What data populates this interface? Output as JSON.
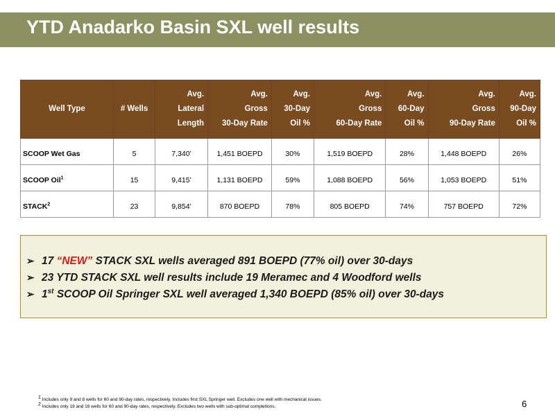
{
  "slide": {
    "title": "YTD Anadarko Basin SXL well results",
    "page_number": "6"
  },
  "table": {
    "headers": [
      {
        "lines": [
          "Well Type"
        ]
      },
      {
        "lines": [
          "# Wells"
        ]
      },
      {
        "lines": [
          "Avg.",
          "Lateral",
          "Length"
        ]
      },
      {
        "lines": [
          "Avg.",
          "Gross",
          "30-Day Rate"
        ]
      },
      {
        "lines": [
          "Avg.",
          "30-Day",
          "Oil %"
        ]
      },
      {
        "lines": [
          "Avg.",
          "Gross",
          "60-Day Rate"
        ]
      },
      {
        "lines": [
          "Avg.",
          "60-Day",
          "Oil %"
        ]
      },
      {
        "lines": [
          "Avg.",
          "Gross",
          "90-Day Rate"
        ]
      },
      {
        "lines": [
          "Avg.",
          "90-Day",
          "Oil %"
        ]
      }
    ],
    "rows": [
      {
        "well_type": "SCOOP Wet Gas",
        "sup": "",
        "wells": "5",
        "lateral": "7,340’",
        "rate30": "1,451 BOEPD",
        "oil30": "30%",
        "rate60": "1,519 BOEPD",
        "oil60": "28%",
        "rate90": "1,448 BOEPD",
        "oil90": "26%"
      },
      {
        "well_type": "SCOOP Oil",
        "sup": "1",
        "wells": "15",
        "lateral": "9,415’",
        "rate30": "1,131 BOEPD",
        "oil30": "59%",
        "rate60": "1,088 BOEPD",
        "oil60": "56%",
        "rate90": "1,053 BOEPD",
        "oil90": "51%"
      },
      {
        "well_type": "STACK",
        "sup": "2",
        "wells": "23",
        "lateral": "9,854’",
        "rate30": "870 BOEPD",
        "oil30": "78%",
        "rate60": "805 BOEPD",
        "oil60": "74%",
        "rate90": "757 BOEPD",
        "oil90": "72%"
      }
    ]
  },
  "bullets": {
    "b1_pre": "17 ",
    "b1_new": "“NEW”",
    "b1_post": " STACK SXL wells averaged 891 BOEPD (77% oil) over 30-days",
    "b2": "23 YTD STACK SXL well results include 19 Meramec and 4 Woodford wells",
    "b3_pre": "1",
    "b3_sup": "st",
    "b3_post": " SCOOP Oil Springer SXL well averaged 1,340 BOEPD (85% oil) over 30-days",
    "arrow": "➢"
  },
  "footnotes": {
    "f1_num": "1",
    "f1_text": " Includes only 9 and 8 wells for 60 and 90-day rates, respectively. Includes first SXL Springer well. Excludes one well with mechanical issues.",
    "f2_num": "2",
    "f2_text": " Includes only 18 and 16 wells for 60 and 90-day rates, respectively. Excludes two wells with sub-optimal completions."
  },
  "colors": {
    "title_bar": "#8c9161",
    "table_header": "#7a4a20",
    "bullet_box_bg": "#f2f2dc",
    "bullet_box_border": "#b08a3c",
    "new_highlight": "#d11c1c"
  }
}
